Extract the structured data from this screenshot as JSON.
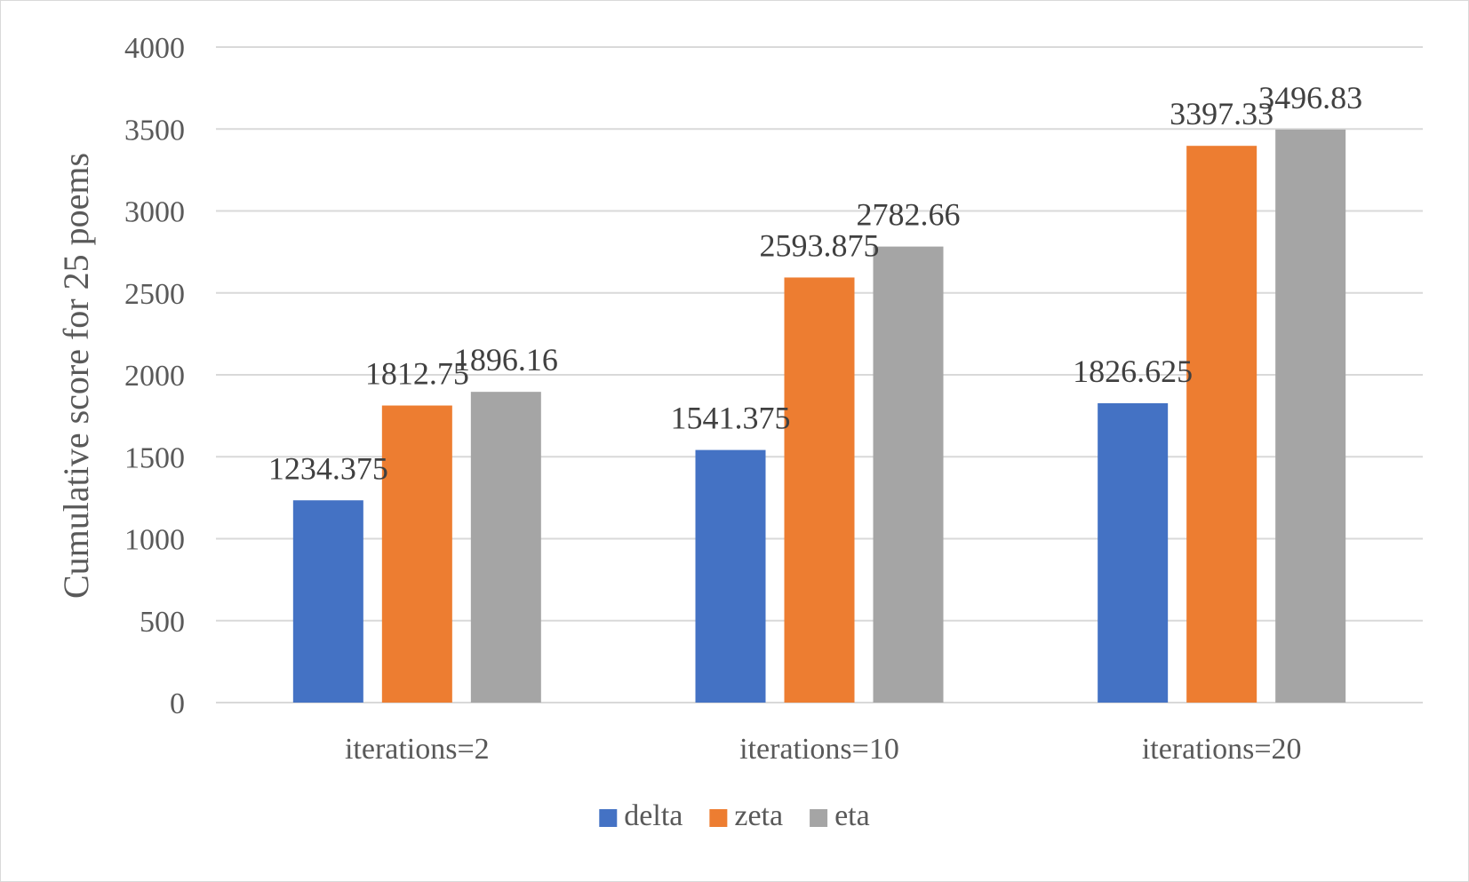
{
  "chart_data": {
    "type": "bar",
    "title": "",
    "xlabel": "",
    "ylabel": "Cumulative score for 25 poems",
    "categories": [
      "iterations=2",
      "iterations=10",
      "iterations=20"
    ],
    "series": [
      {
        "name": "delta",
        "color": "#4472c4",
        "values": [
          1234.375,
          1541.375,
          1826.625
        ],
        "labels": [
          "1234.375",
          "1541.375",
          "1826.625"
        ]
      },
      {
        "name": "zeta",
        "color": "#ed7d31",
        "values": [
          1812.75,
          2593.875,
          3397.33
        ],
        "labels": [
          "1812.75",
          "2593.875",
          "3397.33"
        ]
      },
      {
        "name": "eta",
        "color": "#a5a5a5",
        "values": [
          1896.16,
          2782.66,
          3496.83
        ],
        "labels": [
          "1896.16",
          "2782.66",
          "3496.83"
        ]
      }
    ],
    "ylim": [
      0,
      4000
    ],
    "yticks": [
      0,
      500,
      1000,
      1500,
      2000,
      2500,
      3000,
      3500,
      4000
    ],
    "grid": true,
    "legend": "bottom"
  }
}
